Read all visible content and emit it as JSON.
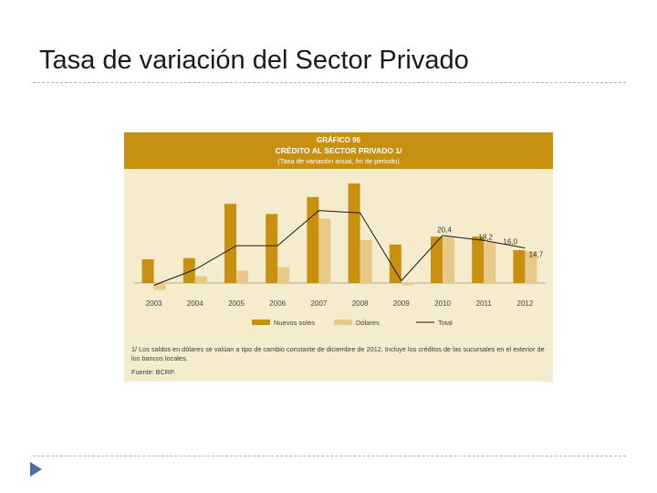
{
  "slide": {
    "title": "Tasa de variación del Sector Privado"
  },
  "figure": {
    "label": "GRÁFICO 96",
    "title": "CRÉDITO AL SECTOR PRIVADO 1/",
    "subtitle": "(Tasa de variación anual, fin de periodo)",
    "note": "1/ Los saldos en dólares se valúan a tipo de cambio constante de diciembre de 2012. Incluye los créditos de las sucursales en el exterior de los bancos locales.",
    "source": "Fuente: BCRP."
  },
  "colors": {
    "header": "#c8900f",
    "panel": "#f4eccd",
    "nuevos_soles": "#c8900f",
    "dolares": "#e8c98a",
    "total": "#1a1a1a",
    "bullet": "#4a6da7"
  },
  "chart_data": {
    "type": "bar",
    "categories": [
      "2003",
      "2004",
      "2005",
      "2006",
      "2007",
      "2008",
      "2009",
      "2010",
      "2011",
      "2012"
    ],
    "series": [
      {
        "name": "Nuevos soles",
        "type": "bar",
        "values": [
          10.5,
          11.0,
          35.0,
          30.5,
          38.0,
          44.0,
          17.0,
          20.5,
          20.5,
          14.5
        ]
      },
      {
        "name": "Dólares",
        "type": "bar",
        "values": [
          -3.0,
          3.0,
          5.5,
          7.0,
          28.5,
          19.0,
          -1.0,
          20.4,
          18.0,
          14.0
        ]
      },
      {
        "name": "Total",
        "type": "line",
        "values": [
          -1.0,
          6.0,
          16.5,
          16.5,
          32.0,
          31.0,
          1.0,
          21.0,
          18.8,
          15.5
        ]
      }
    ],
    "data_labels": [
      {
        "category": "2010",
        "text": "20,4"
      },
      {
        "category": "2011",
        "text": "18,2"
      },
      {
        "category": "2011",
        "text": "16,0"
      },
      {
        "category": "2012",
        "text": "14,7"
      }
    ],
    "legend_position": "bottom",
    "grid": false,
    "ylim": [
      -5,
      48
    ]
  }
}
